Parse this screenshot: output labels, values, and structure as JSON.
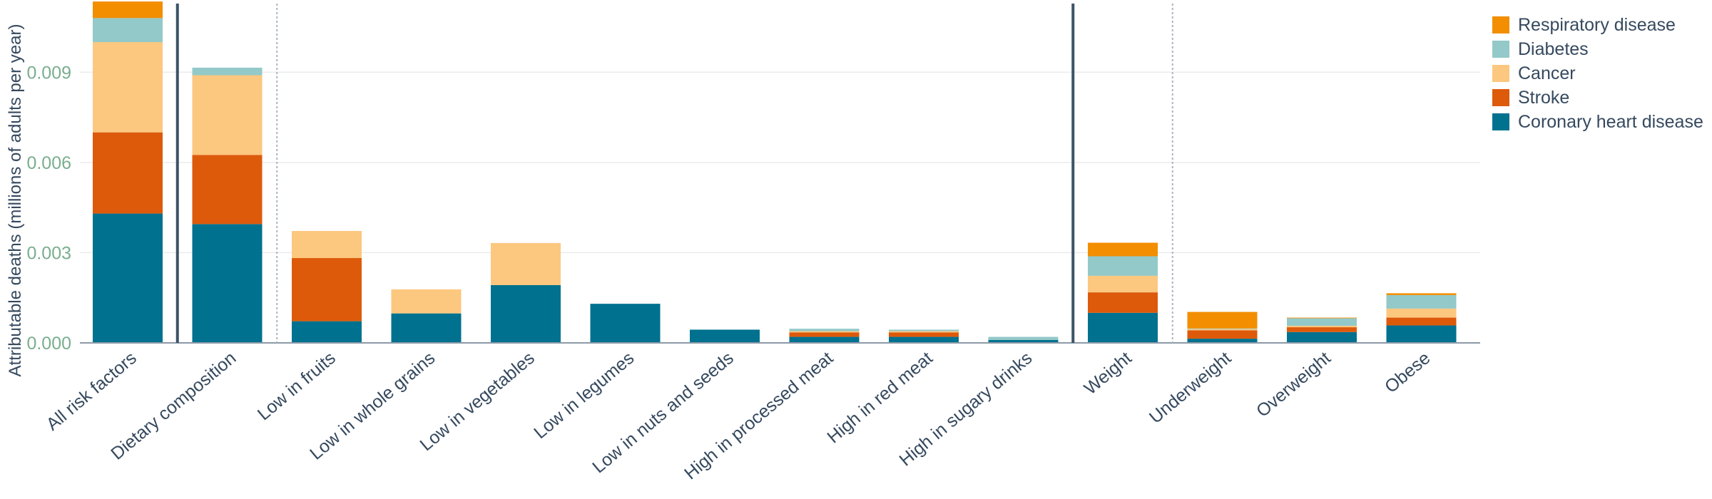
{
  "chart_data": {
    "type": "bar",
    "stacked": true,
    "ylabel": "Attributable deaths (millions of adults per year)",
    "ylim": [
      0,
      0.0114
    ],
    "yticks": [
      "0.000",
      "0.003",
      "0.006",
      "0.009"
    ],
    "ytick_values": [
      0,
      0.003,
      0.006,
      0.009
    ],
    "grid": true,
    "legend_position": "top-right",
    "categories": [
      "All risk factors",
      "Dietary composition",
      "Low in fruits",
      "Low in whole grains",
      "Low in vegetables",
      "Low in legumes",
      "Low in nuts and seeds",
      "High in processed meat",
      "High in red meat",
      "High in sugary drinks",
      "Weight",
      "Underweight",
      "Overweight",
      "Obese"
    ],
    "series": [
      {
        "name": "Coronary heart disease",
        "color": "#00718f",
        "values": [
          0.0043,
          0.00395,
          0.00072,
          0.00098,
          0.00192,
          0.0013,
          0.00044,
          0.0002,
          0.0002,
          0.0001,
          0.001,
          0.00014,
          0.00036,
          0.00058
        ]
      },
      {
        "name": "Stroke",
        "color": "#dd5a0b",
        "values": [
          0.0027,
          0.0023,
          0.0021,
          0,
          0,
          0,
          0,
          0.00015,
          0.00015,
          0,
          0.00068,
          0.00028,
          0.00016,
          0.00026
        ]
      },
      {
        "name": "Cancer",
        "color": "#fcc77f",
        "values": [
          0.003,
          0.00265,
          0.0009,
          0.0008,
          0.0014,
          0,
          0,
          4e-05,
          4e-05,
          0,
          0.00055,
          4e-05,
          5e-05,
          0.0003
        ]
      },
      {
        "name": "Diabetes",
        "color": "#93c9c9",
        "values": [
          0.0008,
          0.00025,
          0,
          0,
          0,
          0,
          0,
          8e-05,
          5e-05,
          0.0001,
          0.00065,
          2e-05,
          0.00025,
          0.00045
        ]
      },
      {
        "name": "Respiratory disease",
        "color": "#f28e00",
        "values": [
          0.00055,
          0,
          0,
          0,
          0,
          0,
          0,
          0,
          0,
          0,
          0.00045,
          0.00055,
          2e-05,
          6e-05
        ]
      }
    ],
    "group_separators": [
      {
        "after": 0,
        "style": "solid"
      },
      {
        "after": 1,
        "style": "dotted"
      },
      {
        "after": 9,
        "style": "solid"
      },
      {
        "after": 10,
        "style": "dotted"
      }
    ],
    "legend_order": [
      "Respiratory disease",
      "Diabetes",
      "Cancer",
      "Stroke",
      "Coronary heart disease"
    ]
  },
  "colors": {
    "tick_label": "#7aae8f",
    "category_label": "#35495e",
    "gridline": "#ebebeb",
    "axis": "#8c9aa8",
    "separator_solid": "#3d5366",
    "separator_dotted": "#aab4c2"
  }
}
